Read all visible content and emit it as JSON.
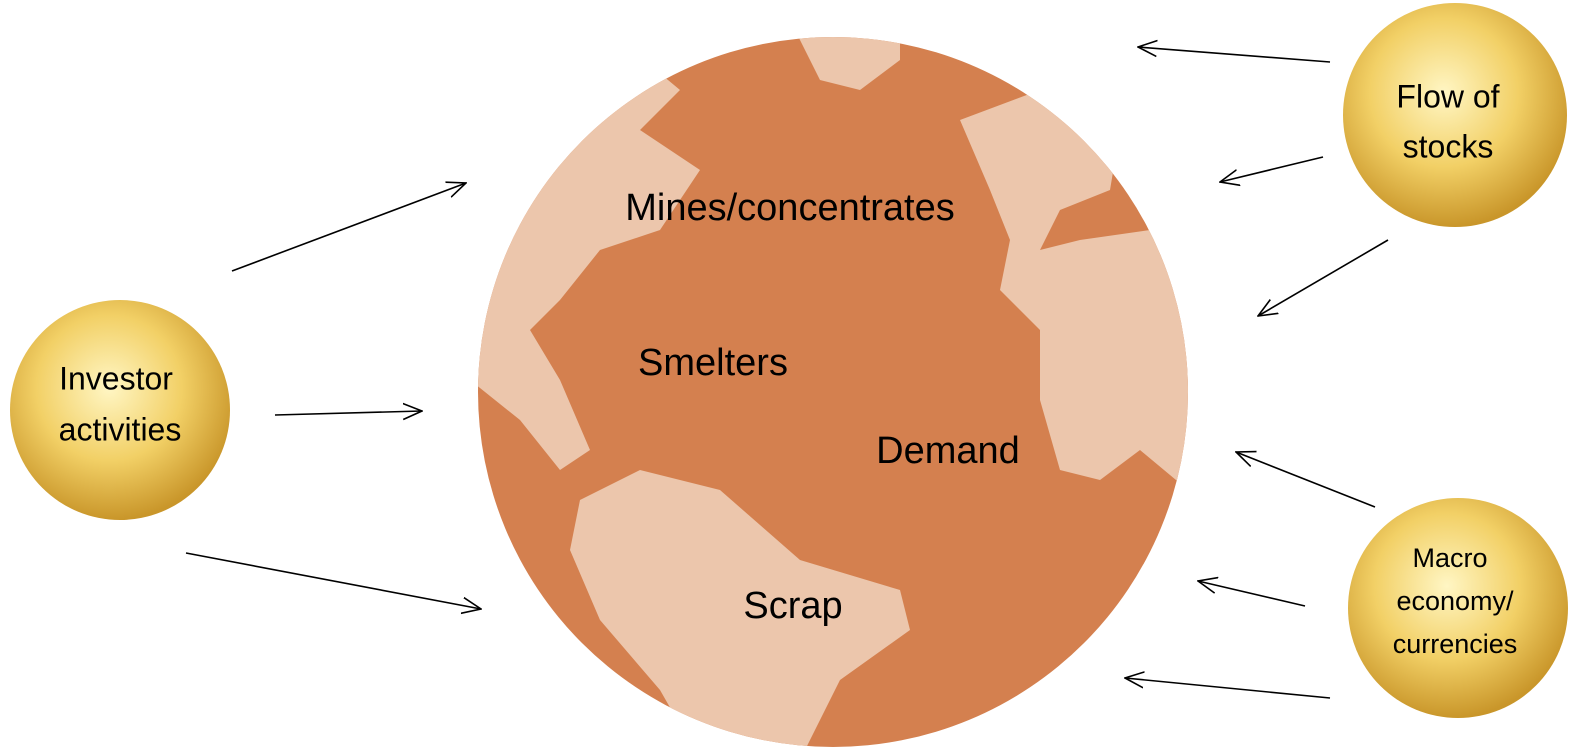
{
  "globe_labels": [
    "Mines/concentrates",
    "Smelters",
    "Demand",
    "Scrap"
  ],
  "nodes": [
    {
      "lines": [
        "Investor",
        "activities"
      ]
    },
    {
      "lines": [
        "Flow of",
        "stocks"
      ]
    },
    {
      "lines": [
        "Macro",
        "economy/",
        "currencies"
      ]
    }
  ]
}
